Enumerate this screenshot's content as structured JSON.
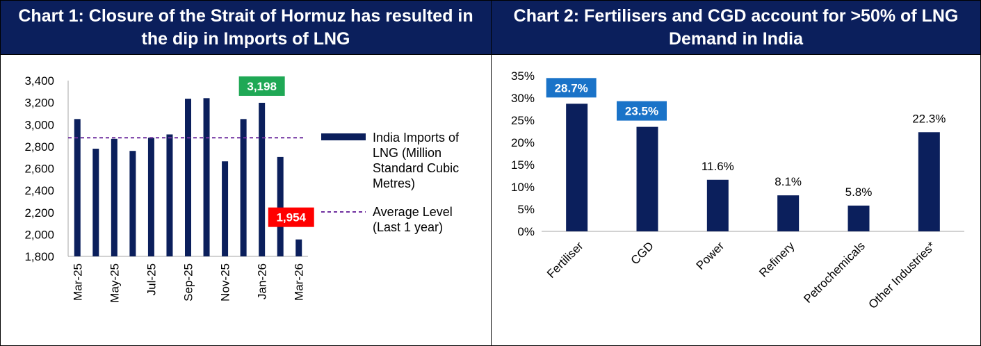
{
  "colors": {
    "header_bg": "#0b1f5c",
    "bar": "#0b1f5c",
    "avg_line": "#7030a0",
    "callout_high": "#1fa855",
    "callout_low": "#ff0000",
    "callout_blue": "#1a73c8"
  },
  "chart1": {
    "title": "Chart 1: Closure of the Strait of Hormuz has resulted in the dip in Imports of LNG"
  },
  "chart2": {
    "title": "Chart 2: Fertilisers and CGD account for >50% of LNG Demand in India"
  },
  "chart_data": [
    {
      "type": "bar",
      "title": "Chart 1: Closure of the Strait of Hormuz has resulted in the dip in Imports of LNG",
      "categories": [
        "Mar-25",
        "Apr-25",
        "May-25",
        "Jun-25",
        "Jul-25",
        "Aug-25",
        "Sep-25",
        "Oct-25",
        "Nov-25",
        "Dec-25",
        "Jan-26",
        "Feb-26",
        "Mar-26"
      ],
      "x_tick_labels": [
        "Mar-25",
        "May-25",
        "Jul-25",
        "Sep-25",
        "Nov-25",
        "Jan-26",
        "Mar-26"
      ],
      "series": [
        {
          "name": "India Imports of LNG (Million Standard Cubic Metres)",
          "values": [
            3050,
            2780,
            2870,
            2760,
            2880,
            2910,
            3235,
            3240,
            2665,
            3050,
            3198,
            2705,
            1954
          ]
        }
      ],
      "average_line": {
        "name": "Average Level (Last 1 year)",
        "value": 2880
      },
      "ylim": [
        1800,
        3400
      ],
      "y_ticks": [
        "1,800",
        "2,000",
        "2,200",
        "2,400",
        "2,600",
        "2,800",
        "3,000",
        "3,200",
        "3,400"
      ],
      "y_tick_values": [
        1800,
        2000,
        2200,
        2400,
        2600,
        2800,
        3000,
        3200,
        3400
      ],
      "callouts": [
        {
          "label": "3,198",
          "category": "Jan-26",
          "color": "high"
        },
        {
          "label": "1,954",
          "category": "Mar-26",
          "color": "low"
        }
      ],
      "legend": [
        "India Imports of LNG (Million Standard Cubic Metres)",
        "Average Level (Last 1 year)"
      ],
      "legend_lines": [
        [
          "India Imports of",
          "LNG (Million",
          "Standard Cubic",
          "Metres)"
        ],
        [
          "Average Level",
          "(Last 1 year)"
        ]
      ],
      "legend_placement": "right",
      "grid": false
    },
    {
      "type": "bar",
      "title": "Chart 2: Fertilisers and CGD account for >50% of LNG Demand in India",
      "categories": [
        "Fertiliser",
        "CGD",
        "Power",
        "Refinery",
        "Petrochemicals",
        "Other Industries*"
      ],
      "values": [
        28.7,
        23.5,
        11.6,
        8.1,
        5.8,
        22.3
      ],
      "value_labels": [
        "28.7%",
        "23.5%",
        "11.6%",
        "8.1%",
        "5.8%",
        "22.3%"
      ],
      "highlighted": [
        true,
        true,
        false,
        false,
        false,
        false
      ],
      "ylim": [
        0,
        35
      ],
      "y_ticks": [
        "0%",
        "5%",
        "10%",
        "15%",
        "20%",
        "25%",
        "30%",
        "35%"
      ],
      "y_tick_values": [
        0,
        5,
        10,
        15,
        20,
        25,
        30,
        35
      ],
      "grid": false
    }
  ]
}
